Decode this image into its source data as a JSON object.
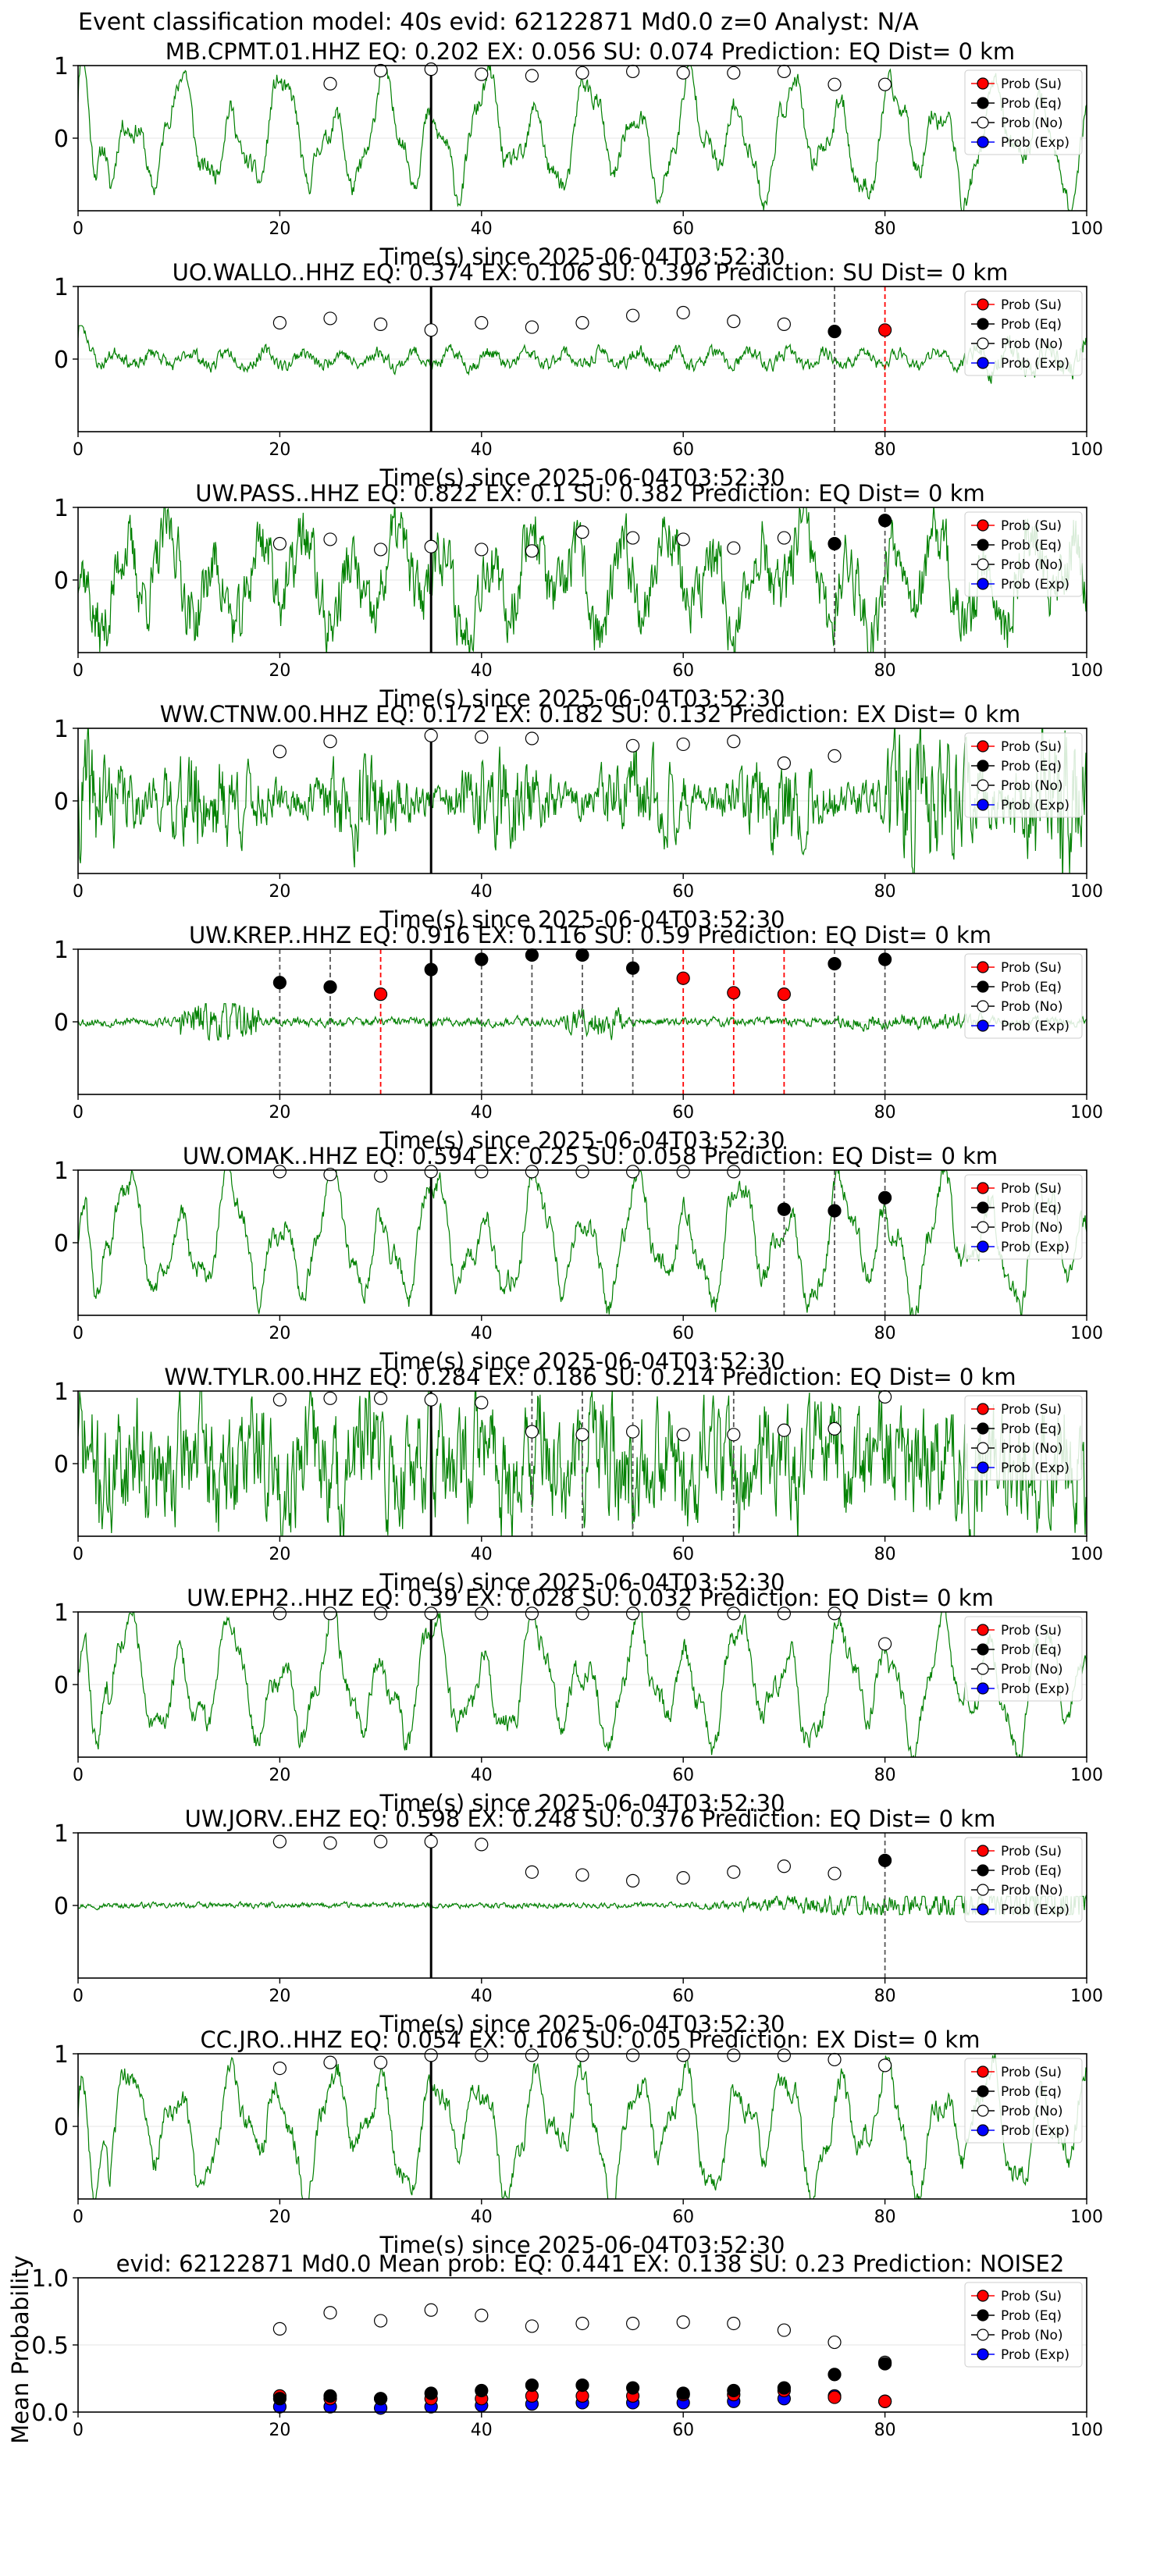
{
  "figure": {
    "suptitle": "Event classification model: 40s evid: 62122871 Md0.0 z=0 Analyst: N/A"
  },
  "legend": {
    "su": "Prob (Su)",
    "eq": "Prob (Eq)",
    "no": "Prob (No)",
    "exp": "Prob (Exp)"
  },
  "colors": {
    "trace": "#008000",
    "su": "#ff0000",
    "eq": "#000000",
    "no": "#ffffff",
    "exp": "#0000ff",
    "su_line": "#ff0000",
    "eq_line": "#555555"
  },
  "chart_data": [
    {
      "type": "line",
      "title": "MB.CPMT.01.HHZ   EQ: 0.202  EX: 0.056  SU: 0.074   Prediction: EQ    Dist= 0 km",
      "xlabel": "Time(s) since 2025-06-04T03:52:30",
      "ylabel": "",
      "xlim": [
        0,
        100
      ],
      "ylim": [
        -1,
        1
      ],
      "xticks": [
        0,
        20,
        40,
        60,
        80,
        100
      ],
      "yticks": [
        1,
        0
      ],
      "legend_position": "top-right",
      "grid": "horizontal",
      "waveform": {
        "amplitude": 0.55,
        "character": "long-period",
        "seed": 11
      },
      "pick_time": 35,
      "no_points": {
        "x": [
          25,
          30,
          35,
          40,
          45,
          50,
          55,
          60,
          65,
          70,
          75,
          80
        ],
        "y": [
          0.75,
          0.93,
          0.95,
          0.88,
          0.86,
          0.9,
          0.92,
          0.9,
          0.9,
          0.92,
          0.74,
          0.74
        ]
      },
      "eq_points": {
        "x": [],
        "y": []
      },
      "su_points": {
        "x": [],
        "y": []
      },
      "exp_points": {
        "x": [],
        "y": []
      },
      "eq_lines": [],
      "su_lines": []
    },
    {
      "type": "line",
      "title": "UO.WALLO..HHZ   EQ: 0.374  EX: 0.106  SU: 0.396   Prediction: SU    Dist= 0 km",
      "xlabel": "Time(s) since 2025-06-04T03:52:30",
      "ylabel": "",
      "xlim": [
        0,
        100
      ],
      "ylim": [
        -1,
        1
      ],
      "xticks": [
        0,
        20,
        40,
        60,
        80,
        100
      ],
      "yticks": [
        1,
        0
      ],
      "legend_position": "top-right",
      "grid": "horizontal",
      "waveform": {
        "amplitude": 0.22,
        "character": "low",
        "seed": 23
      },
      "pick_time": 35,
      "no_points": {
        "x": [
          20,
          25,
          30,
          35,
          40,
          45,
          50,
          55,
          60,
          65,
          70
        ],
        "y": [
          0.5,
          0.56,
          0.48,
          0.4,
          0.5,
          0.44,
          0.5,
          0.6,
          0.64,
          0.52,
          0.48
        ]
      },
      "eq_points": {
        "x": [
          75
        ],
        "y": [
          0.38
        ]
      },
      "su_points": {
        "x": [
          80
        ],
        "y": [
          0.4
        ]
      },
      "exp_points": {
        "x": [],
        "y": []
      },
      "eq_lines": [
        75
      ],
      "su_lines": [
        80
      ]
    },
    {
      "type": "line",
      "title": "UW.PASS..HHZ   EQ: 0.822  EX: 0.1  SU: 0.382   Prediction: EQ    Dist= 0 km",
      "xlabel": "Time(s) since 2025-06-04T03:52:30",
      "ylabel": "",
      "xlim": [
        0,
        100
      ],
      "ylim": [
        -1,
        1
      ],
      "xticks": [
        0,
        20,
        40,
        60,
        80,
        100
      ],
      "yticks": [
        1,
        0
      ],
      "legend_position": "top-right",
      "grid": "horizontal",
      "waveform": {
        "amplitude": 0.6,
        "character": "noisy",
        "seed": 37
      },
      "pick_time": 35,
      "no_points": {
        "x": [
          20,
          25,
          30,
          35,
          40,
          45,
          50,
          55,
          60,
          65,
          70
        ],
        "y": [
          0.5,
          0.56,
          0.42,
          0.46,
          0.42,
          0.4,
          0.66,
          0.58,
          0.56,
          0.44,
          0.58
        ]
      },
      "eq_points": {
        "x": [
          75,
          80
        ],
        "y": [
          0.5,
          0.82
        ]
      },
      "su_points": {
        "x": [],
        "y": []
      },
      "exp_points": {
        "x": [],
        "y": []
      },
      "eq_lines": [
        75,
        80
      ],
      "su_lines": []
    },
    {
      "type": "line",
      "title": "WW.CTNW.00.HHZ   EQ: 0.172  EX: 0.182  SU: 0.132   Prediction: EX    Dist= 0 km",
      "xlabel": "Time(s) since 2025-06-04T03:52:30",
      "ylabel": "",
      "xlim": [
        0,
        100
      ],
      "ylim": [
        -1,
        1
      ],
      "xticks": [
        0,
        20,
        40,
        60,
        80,
        100
      ],
      "yticks": [
        1,
        0
      ],
      "legend_position": "top-right",
      "grid": "horizontal",
      "waveform": {
        "amplitude": 0.6,
        "character": "burst",
        "seed": 41
      },
      "pick_time": 35,
      "no_points": {
        "x": [
          20,
          25,
          35,
          40,
          45,
          55,
          60,
          65,
          70,
          75
        ],
        "y": [
          0.68,
          0.82,
          0.9,
          0.88,
          0.86,
          0.76,
          0.78,
          0.82,
          0.52,
          0.62
        ]
      },
      "eq_points": {
        "x": [],
        "y": []
      },
      "su_points": {
        "x": [],
        "y": []
      },
      "exp_points": {
        "x": [],
        "y": []
      },
      "eq_lines": [],
      "su_lines": []
    },
    {
      "type": "line",
      "title": "UW.KREP..HHZ   EQ: 0.916  EX: 0.116  SU: 0.59   Prediction: EQ    Dist= 0 km",
      "xlabel": "Time(s) since 2025-06-04T03:52:30",
      "ylabel": "",
      "xlim": [
        0,
        100
      ],
      "ylim": [
        -1,
        1
      ],
      "xticks": [
        0,
        20,
        40,
        60,
        80,
        100
      ],
      "yticks": [
        1,
        0
      ],
      "legend_position": "top-right",
      "grid": "horizontal",
      "waveform": {
        "amplitude": 0.12,
        "character": "quiet-burst",
        "seed": 53
      },
      "pick_time": 35,
      "no_points": {
        "x": [],
        "y": []
      },
      "eq_points": {
        "x": [
          20,
          25,
          35,
          40,
          45,
          50,
          55,
          75,
          80
        ],
        "y": [
          0.54,
          0.48,
          0.72,
          0.86,
          0.92,
          0.92,
          0.74,
          0.8,
          0.86
        ]
      },
      "su_points": {
        "x": [
          30,
          60,
          65,
          70
        ],
        "y": [
          0.38,
          0.6,
          0.4,
          0.38
        ]
      },
      "exp_points": {
        "x": [],
        "y": []
      },
      "eq_lines": [
        20,
        25,
        40,
        45,
        50,
        55,
        75,
        80
      ],
      "su_lines": [
        30,
        60,
        65,
        70
      ]
    },
    {
      "type": "line",
      "title": "UW.OMAK..HHZ   EQ: 0.594  EX: 0.25  SU: 0.058   Prediction: EQ    Dist= 0 km",
      "xlabel": "Time(s) since 2025-06-04T03:52:30",
      "ylabel": "",
      "xlim": [
        0,
        100
      ],
      "ylim": [
        -1,
        1
      ],
      "xticks": [
        0,
        20,
        40,
        60,
        80,
        100
      ],
      "yticks": [
        1,
        0
      ],
      "legend_position": "top-right",
      "grid": "horizontal",
      "waveform": {
        "amplitude": 0.6,
        "character": "long-period",
        "seed": 61
      },
      "pick_time": 35,
      "no_points": {
        "x": [
          20,
          25,
          30,
          35,
          40,
          45,
          50,
          55,
          60,
          65
        ],
        "y": [
          0.98,
          0.94,
          0.92,
          0.98,
          0.98,
          0.98,
          0.98,
          0.98,
          0.98,
          0.98
        ]
      },
      "eq_points": {
        "x": [
          70,
          75,
          80
        ],
        "y": [
          0.46,
          0.44,
          0.62
        ]
      },
      "su_points": {
        "x": [],
        "y": []
      },
      "exp_points": {
        "x": [],
        "y": []
      },
      "eq_lines": [
        70,
        75,
        80
      ],
      "su_lines": []
    },
    {
      "type": "line",
      "title": "WW.TYLR.00.HHZ   EQ: 0.284  EX: 0.186  SU: 0.214   Prediction: EQ    Dist= 0 km",
      "xlabel": "Time(s) since 2025-06-04T03:52:30",
      "ylabel": "",
      "xlim": [
        0,
        100
      ],
      "ylim": [
        -1,
        1
      ],
      "xticks": [
        0,
        20,
        40,
        60,
        80,
        100
      ],
      "yticks": [
        1,
        0
      ],
      "legend_position": "top-right",
      "grid": "horizontal",
      "waveform": {
        "amplitude": 0.75,
        "character": "very-noisy",
        "seed": 71
      },
      "pick_time": 35,
      "no_points": {
        "x": [
          20,
          25,
          30,
          35,
          40,
          45,
          50,
          55,
          60,
          65,
          70,
          75,
          80
        ],
        "y": [
          0.88,
          0.9,
          0.9,
          0.88,
          0.84,
          0.44,
          0.4,
          0.44,
          0.4,
          0.4,
          0.46,
          0.48,
          0.92
        ]
      },
      "eq_points": {
        "x": [],
        "y": []
      },
      "su_points": {
        "x": [],
        "y": []
      },
      "exp_points": {
        "x": [],
        "y": []
      },
      "eq_lines": [
        45,
        50,
        55,
        65
      ],
      "su_lines": []
    },
    {
      "type": "line",
      "title": "UW.EPH2..HHZ   EQ: 0.39  EX: 0.028  SU: 0.032   Prediction: EQ    Dist= 0 km",
      "xlabel": "Time(s) since 2025-06-04T03:52:30",
      "ylabel": "",
      "xlim": [
        0,
        100
      ],
      "ylim": [
        -1,
        1
      ],
      "xticks": [
        0,
        20,
        40,
        60,
        80,
        100
      ],
      "yticks": [
        1,
        0
      ],
      "legend_position": "top-right",
      "grid": "horizontal",
      "waveform": {
        "amplitude": 0.6,
        "character": "long-period",
        "seed": 83
      },
      "pick_time": 35,
      "no_points": {
        "x": [
          20,
          25,
          30,
          35,
          40,
          45,
          50,
          55,
          60,
          65,
          70,
          75,
          80
        ],
        "y": [
          0.98,
          0.98,
          0.98,
          0.98,
          0.98,
          0.98,
          0.98,
          0.98,
          0.98,
          0.98,
          0.98,
          0.98,
          0.56
        ]
      },
      "eq_points": {
        "x": [],
        "y": []
      },
      "su_points": {
        "x": [],
        "y": []
      },
      "exp_points": {
        "x": [],
        "y": []
      },
      "eq_lines": [],
      "su_lines": []
    },
    {
      "type": "line",
      "title": "UW.JORV..EHZ   EQ: 0.598  EX: 0.248  SU: 0.376   Prediction: EQ    Dist= 0 km",
      "xlabel": "Time(s) since 2025-06-04T03:52:30",
      "ylabel": "",
      "xlim": [
        0,
        100
      ],
      "ylim": [
        -1,
        1
      ],
      "xticks": [
        0,
        20,
        40,
        60,
        80,
        100
      ],
      "yticks": [
        1,
        0
      ],
      "legend_position": "top-right",
      "grid": "horizontal",
      "waveform": {
        "amplitude": 0.06,
        "character": "flat-rising",
        "seed": 97
      },
      "pick_time": 35,
      "no_points": {
        "x": [
          20,
          25,
          30,
          35,
          40,
          45,
          50,
          55,
          60,
          65,
          70,
          75
        ],
        "y": [
          0.88,
          0.86,
          0.88,
          0.88,
          0.84,
          0.46,
          0.42,
          0.34,
          0.38,
          0.46,
          0.54,
          0.44
        ]
      },
      "eq_points": {
        "x": [
          80
        ],
        "y": [
          0.62
        ]
      },
      "su_points": {
        "x": [],
        "y": []
      },
      "exp_points": {
        "x": [],
        "y": []
      },
      "eq_lines": [
        80
      ],
      "su_lines": []
    },
    {
      "type": "line",
      "title": "CC.JRO..HHZ   EQ: 0.054  EX: 0.106  SU: 0.05   Prediction: EX    Dist= 0 km",
      "xlabel": "Time(s) since 2025-06-04T03:52:30",
      "ylabel": "",
      "xlim": [
        0,
        100
      ],
      "ylim": [
        -1,
        1
      ],
      "xticks": [
        0,
        20,
        40,
        60,
        80,
        100
      ],
      "yticks": [
        1,
        0
      ],
      "legend_position": "top-right",
      "grid": "horizontal",
      "waveform": {
        "amplitude": 0.6,
        "character": "long-period",
        "seed": 103
      },
      "pick_time": 35,
      "no_points": {
        "x": [
          20,
          25,
          30,
          35,
          40,
          45,
          50,
          55,
          60,
          65,
          70,
          75,
          80
        ],
        "y": [
          0.8,
          0.88,
          0.88,
          0.98,
          0.98,
          0.98,
          0.98,
          0.98,
          0.98,
          0.98,
          0.98,
          0.92,
          0.84
        ]
      },
      "eq_points": {
        "x": [],
        "y": []
      },
      "su_points": {
        "x": [],
        "y": []
      },
      "exp_points": {
        "x": [],
        "y": []
      },
      "eq_lines": [],
      "su_lines": []
    },
    {
      "type": "scatter",
      "title": "evid: 62122871  Md0.0   Mean prob:   EQ: 0.441  EX: 0.138  SU: 0.23   Prediction: NOISE2",
      "xlabel": "",
      "ylabel": "Mean Probability",
      "xlim": [
        0,
        100
      ],
      "ylim": [
        0,
        1
      ],
      "xticks": [
        0,
        20,
        40,
        60,
        80,
        100
      ],
      "yticks": [
        0.0,
        0.5,
        1.0
      ],
      "legend_position": "top-right",
      "grid": "horizontal",
      "waveform": null,
      "pick_time": null,
      "no_points": {
        "x": [
          20,
          25,
          30,
          35,
          40,
          45,
          50,
          55,
          60,
          65,
          70,
          75,
          80
        ],
        "y": [
          0.62,
          0.74,
          0.68,
          0.76,
          0.72,
          0.64,
          0.66,
          0.66,
          0.67,
          0.66,
          0.61,
          0.52,
          0.37
        ]
      },
      "eq_points": {
        "x": [
          20,
          25,
          30,
          35,
          40,
          45,
          50,
          55,
          60,
          65,
          70,
          75,
          80
        ],
        "y": [
          0.1,
          0.12,
          0.1,
          0.14,
          0.16,
          0.2,
          0.2,
          0.18,
          0.14,
          0.16,
          0.18,
          0.28,
          0.36
        ]
      },
      "su_points": {
        "x": [
          20,
          25,
          30,
          35,
          40,
          45,
          50,
          55,
          60,
          65,
          70,
          75,
          80
        ],
        "y": [
          0.12,
          0.1,
          0.1,
          0.1,
          0.1,
          0.12,
          0.12,
          0.12,
          0.13,
          0.13,
          0.16,
          0.11,
          0.08
        ]
      },
      "exp_points": {
        "x": [
          20,
          25,
          30,
          35,
          40,
          45,
          50,
          55,
          60,
          65,
          70,
          75,
          80
        ],
        "y": [
          0.04,
          0.04,
          0.03,
          0.04,
          0.05,
          0.06,
          0.07,
          0.07,
          0.07,
          0.08,
          0.1,
          0.12,
          0.08
        ]
      },
      "eq_lines": [],
      "su_lines": []
    }
  ]
}
